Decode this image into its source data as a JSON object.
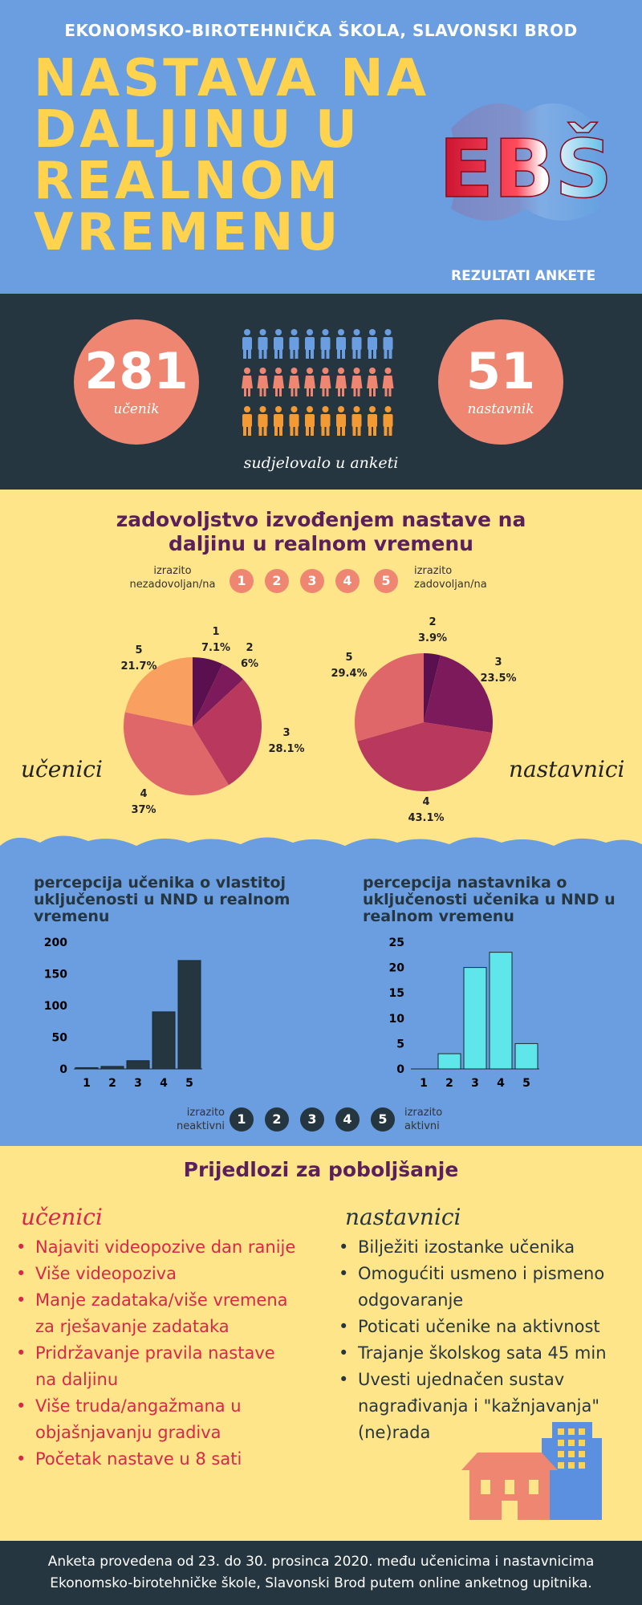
{
  "header": {
    "school": "EKONOMSKO-BIROTEHNIČKA ŠKOLA, SLAVONSKI BROD",
    "title_lines": [
      "NASTAVA NA",
      "DALJINU U",
      "REALNOM",
      "VREMENU"
    ],
    "logo_text": "EBŠ",
    "results_label": "REZULTATI ANKETE"
  },
  "participants": {
    "students_count": "281",
    "students_label": "učenik",
    "teachers_count": "51",
    "teachers_label": "nastavnik",
    "caption": "sudjelovalo u anketi",
    "icon_rows": [
      {
        "icon": "person-icon",
        "color": "#6a9ee0",
        "count": 10
      },
      {
        "icon": "person-dress-icon",
        "color": "#ee8672",
        "count": 10
      },
      {
        "icon": "person-icon",
        "color": "#f39a35",
        "count": 10
      }
    ]
  },
  "satisfaction": {
    "title_lines": [
      "zadovoljstvo izvođenjem nastave na",
      "daljinu u realnom vremenu"
    ],
    "low_label_lines": [
      "izrazito",
      "nezadovoljan/na"
    ],
    "high_label_lines": [
      "izrazito",
      "zadovoljan/na"
    ],
    "scale": [
      "1",
      "2",
      "3",
      "4",
      "5"
    ],
    "students_label": "učenici",
    "teachers_label": "nastavnici"
  },
  "engagement": {
    "scale": [
      "1",
      "2",
      "3",
      "4",
      "5"
    ],
    "low_label_lines": [
      "izrazito",
      "neaktivni"
    ],
    "high_label_lines": [
      "izrazito",
      "aktivni"
    ]
  },
  "chart_data": [
    {
      "type": "pie",
      "name": "učenici",
      "categories": [
        "1",
        "2",
        "3",
        "4",
        "5"
      ],
      "values": [
        7.1,
        6,
        28.1,
        37,
        21.7
      ],
      "value_labels": [
        "7.1%",
        "6%",
        "28.1%",
        "37%",
        "21.7%"
      ],
      "colors": [
        "#5a0f4e",
        "#7d1a5c",
        "#b8395d",
        "#e06769",
        "#f9a061"
      ]
    },
    {
      "type": "pie",
      "name": "nastavnici",
      "categories": [
        "2",
        "3",
        "4",
        "5"
      ],
      "values": [
        3.9,
        23.5,
        43.1,
        29.4
      ],
      "value_labels": [
        "3.9%",
        "23.5%",
        "43.1%",
        "29.4%"
      ],
      "colors": [
        "#5a0f4e",
        "#7d1a5c",
        "#b8395d",
        "#e06769"
      ]
    },
    {
      "type": "bar",
      "title_lines": [
        "percepcija učenika o vlastitoj",
        "uključenosti u NND u realnom",
        "vremenu"
      ],
      "categories": [
        "1",
        "2",
        "3",
        "4",
        "5"
      ],
      "values": [
        2,
        4,
        13,
        90,
        171
      ],
      "ylim": [
        0,
        200
      ],
      "yticks": [
        "0",
        "50",
        "100",
        "150",
        "200"
      ],
      "color": "#263640"
    },
    {
      "type": "bar",
      "title_lines": [
        "percepcija nastavnika o",
        "uključenosti učenika u NND u",
        "realnom vremenu"
      ],
      "categories": [
        "1",
        "2",
        "3",
        "4",
        "5"
      ],
      "values": [
        0,
        3,
        20,
        23,
        5
      ],
      "ylim": [
        0,
        25
      ],
      "yticks": [
        "0",
        "5",
        "10",
        "15",
        "20",
        "25"
      ],
      "color": "#5fe6ea"
    }
  ],
  "suggestions": {
    "title": "Prijedlozi za poboljšanje",
    "students_heading": "učenici",
    "teachers_heading": "nastavnici",
    "bullet": "•",
    "students": [
      [
        "Najaviti videopozive dan ranije"
      ],
      [
        "Više videopoziva"
      ],
      [
        "Manje zadataka/više vremena",
        "za rješavanje zadataka"
      ],
      [
        "Pridržavanje pravila nastave",
        "na daljinu"
      ],
      [
        "Više truda/angažmana u",
        "objašnjavanju gradiva"
      ],
      [
        "Početak nastave u 8 sati"
      ]
    ],
    "teachers": [
      [
        "Bilježiti izostanke učenika"
      ],
      [
        "Omogućiti usmeno i pismeno",
        "odgovaranje"
      ],
      [
        "Poticati učenike na aktivnost"
      ],
      [
        "Trajanje školskog sata 45 min"
      ],
      [
        "Uvesti ujednačen sustav",
        "nagrađivanja i \"kažnjavanja\"",
        "(ne)rada"
      ]
    ]
  },
  "footer": {
    "lines": [
      "Anketa provedena od 23. do 30. prosinca 2020. među učenicima i nastavnicima",
      "Ekonomsko-birotehničke škole, Slavonski Brod putem online anketnog upitnika."
    ]
  }
}
